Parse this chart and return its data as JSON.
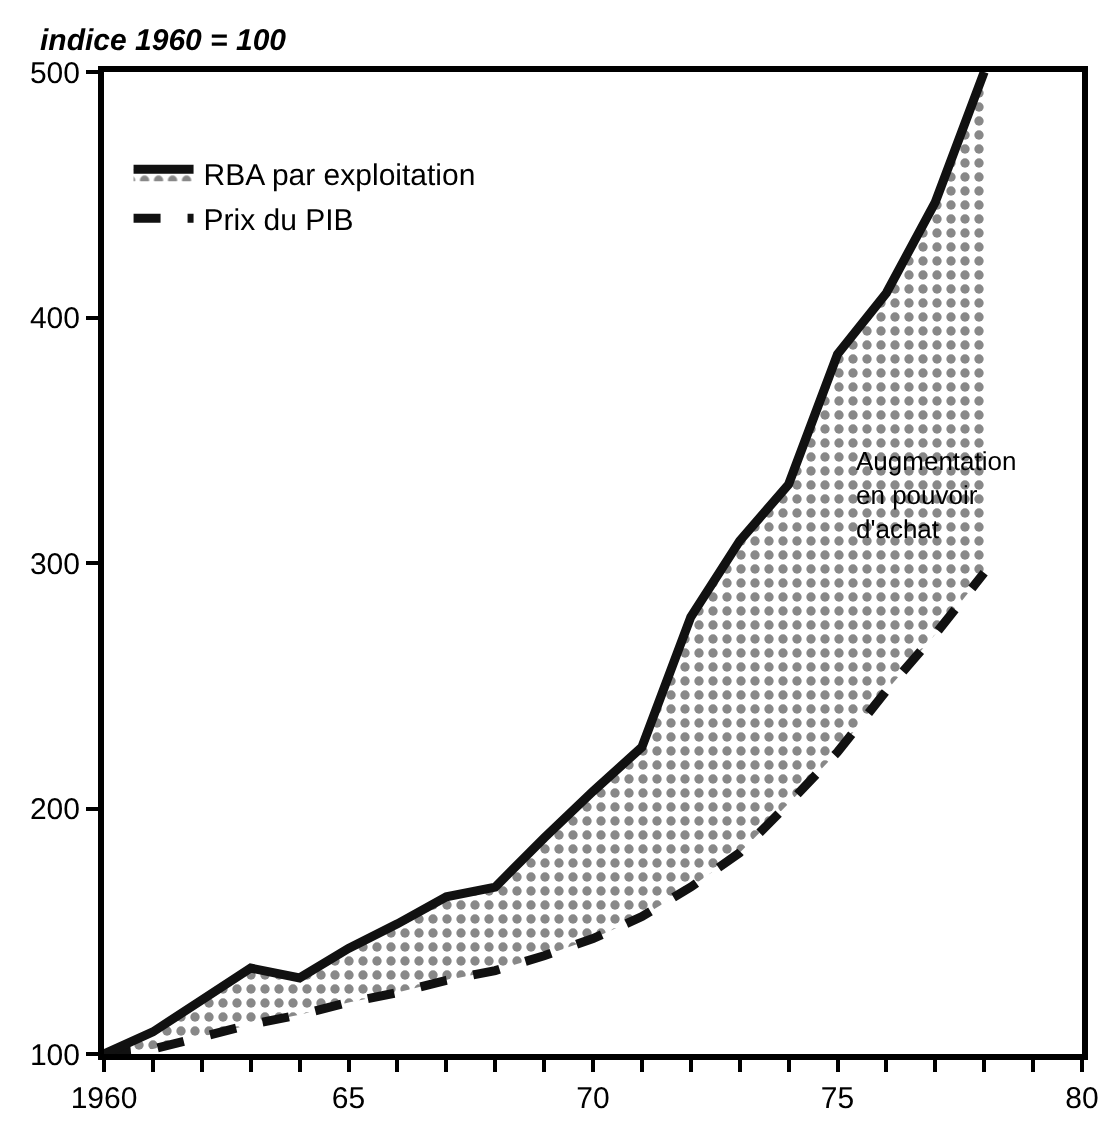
{
  "chart_data": {
    "type": "line",
    "ylabel": "indice 1960 = 100",
    "x": [
      1960,
      1961,
      1962,
      1963,
      1964,
      1965,
      1966,
      1967,
      1968,
      1969,
      1970,
      1971,
      1972,
      1973,
      1974,
      1975,
      1976,
      1977,
      1978
    ],
    "series": [
      {
        "name": "Prix du PIB",
        "color": "#111111",
        "line_style": "dashed",
        "values": [
          100,
          102,
          107,
          112,
          116,
          121,
          125,
          130,
          134,
          140,
          147,
          156,
          168,
          182,
          202,
          223,
          248,
          271,
          296
        ]
      },
      {
        "name": "RBA par exploitation",
        "color": "#111111",
        "type": "area",
        "line_style": "solid",
        "values": [
          100,
          109,
          122,
          135,
          131,
          143,
          153,
          164,
          168,
          188,
          207,
          225,
          278,
          309,
          332,
          385,
          410,
          447,
          500
        ]
      }
    ],
    "annotations": [
      "Augmentation\nen pouvoir\nd'achat"
    ],
    "xlim": [
      1960,
      1980
    ],
    "ylim": [
      100,
      500
    ],
    "xticks": [
      {
        "value": 1960,
        "label": "1960"
      },
      {
        "value": 1961,
        "label": null
      },
      {
        "value": 1962,
        "label": null
      },
      {
        "value": 1963,
        "label": null
      },
      {
        "value": 1964,
        "label": null
      },
      {
        "value": 1965,
        "label": "65"
      },
      {
        "value": 1966,
        "label": null
      },
      {
        "value": 1967,
        "label": null
      },
      {
        "value": 1968,
        "label": null
      },
      {
        "value": 1969,
        "label": null
      },
      {
        "value": 1970,
        "label": "70"
      },
      {
        "value": 1971,
        "label": null
      },
      {
        "value": 1972,
        "label": null
      },
      {
        "value": 1973,
        "label": null
      },
      {
        "value": 1974,
        "label": null
      },
      {
        "value": 1975,
        "label": "75"
      },
      {
        "value": 1976,
        "label": null
      },
      {
        "value": 1977,
        "label": null
      },
      {
        "value": 1978,
        "label": null
      },
      {
        "value": 1979,
        "label": null
      },
      {
        "value": 1980,
        "label": "80"
      }
    ],
    "yticks": [
      100,
      200,
      300,
      400,
      500
    ],
    "legend": "top left",
    "marker": "none"
  }
}
